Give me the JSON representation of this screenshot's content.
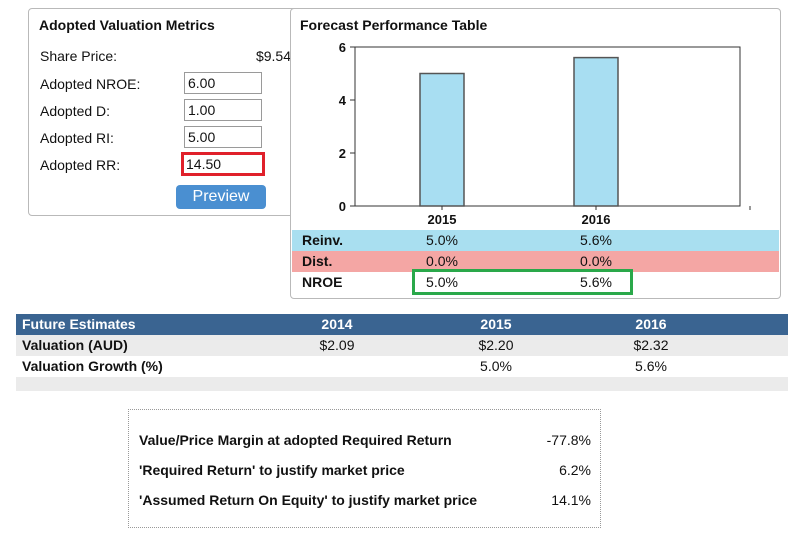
{
  "metrics": {
    "title": "Adopted Valuation Metrics",
    "share_price_label": "Share Price:",
    "share_price_value": "$9.54",
    "nroe_label": "Adopted NROE:",
    "nroe_value": "6.00",
    "d_label": "Adopted D:",
    "d_value": "1.00",
    "ri_label": "Adopted RI:",
    "ri_value": "5.00",
    "rr_label": "Adopted RR:",
    "rr_value": "14.50",
    "preview_label": "Preview",
    "highlight_color": "#e0202a"
  },
  "forecast": {
    "title": "Forecast Performance Table",
    "rows": [
      {
        "label": "Reinv.",
        "v2015": "5.0%",
        "v2016": "5.6%"
      },
      {
        "label": "Dist.",
        "v2015": "0.0%",
        "v2016": "0.0%"
      },
      {
        "label": "NROE",
        "v2015": "5.0%",
        "v2016": "5.6%"
      }
    ],
    "reinv_color": "#a9dff0",
    "dist_color": "#f4a6a4",
    "nroe_highlight_color": "#2aa84a"
  },
  "chart_data": {
    "type": "bar",
    "categories": [
      "2015",
      "2016"
    ],
    "values": [
      5.0,
      5.6
    ],
    "ylim": [
      0,
      6
    ],
    "yticks": [
      0,
      2,
      4,
      6
    ],
    "title": "",
    "xlabel": "",
    "ylabel": "",
    "grid": false,
    "bar_color": "#a8def2"
  },
  "estimates": {
    "header": {
      "label": "Future Estimates",
      "c1": "2014",
      "c2": "2015",
      "c3": "2016"
    },
    "valuation": {
      "label": "Valuation (AUD)",
      "c1": "$2.09",
      "c2": "$2.20",
      "c3": "$2.32"
    },
    "growth": {
      "label": "Valuation Growth (%)",
      "c1": "",
      "c2": "5.0%",
      "c3": "5.6%"
    },
    "header_color": "#3a6491"
  },
  "margin": {
    "rows": [
      {
        "label": "Value/Price Margin at adopted Required Return",
        "value": "-77.8%"
      },
      {
        "label": "'Required Return' to justify market price",
        "value": "6.2%"
      },
      {
        "label": "'Assumed Return On Equity' to justify market price",
        "value": "14.1%"
      }
    ]
  }
}
